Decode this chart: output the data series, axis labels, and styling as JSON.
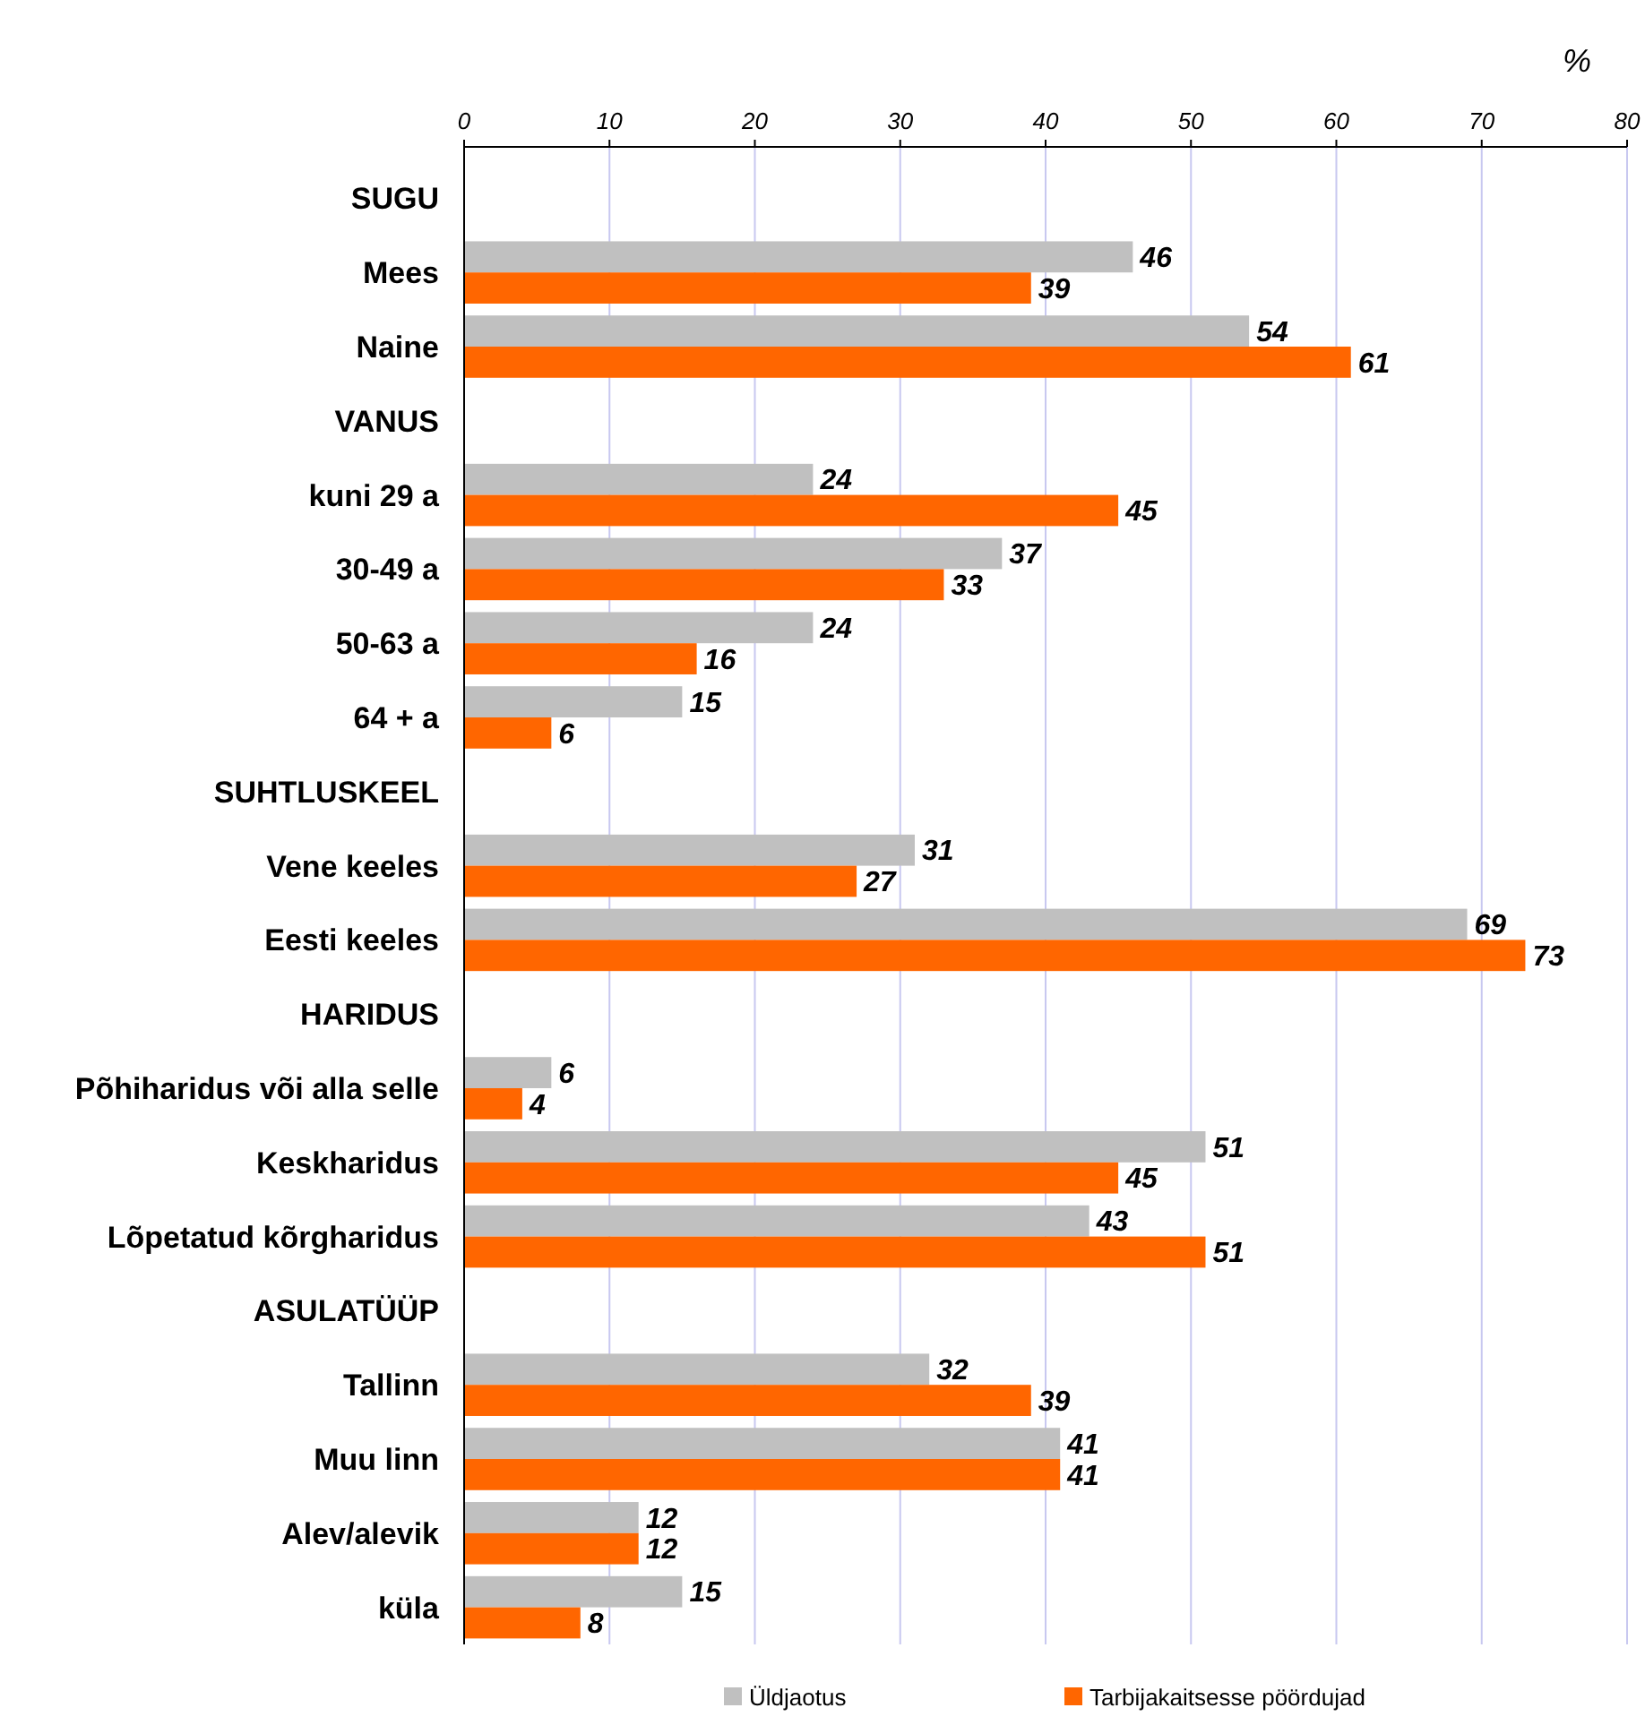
{
  "chart_data": {
    "type": "bar",
    "orientation": "horizontal",
    "xlabel": "%",
    "categories": [
      "SUGU",
      "Mees",
      "Naine",
      "VANUS",
      "kuni 29 a",
      "30-49 a",
      "50-63 a",
      "64 + a",
      "SUHTLUSKEEL",
      "Vene keeles",
      "Eesti keeles",
      "HARIDUS",
      "Põhiharidus või alla selle",
      "Keskharidus",
      "Lõpetatud kõrgharidus",
      "ASULATÜÜP",
      "Tallinn",
      "Muu linn",
      "Alev/alevik",
      "küla"
    ],
    "series": [
      {
        "name": "Üldjaotus",
        "color": "#c0c0c0",
        "values": [
          null,
          46,
          54,
          null,
          24,
          37,
          24,
          15,
          null,
          31,
          69,
          null,
          6,
          51,
          43,
          null,
          32,
          41,
          12,
          15
        ]
      },
      {
        "name": "Tarbijakaitsesse pöördujad",
        "color": "#ff6600",
        "values": [
          null,
          39,
          61,
          null,
          45,
          33,
          16,
          6,
          null,
          27,
          73,
          null,
          4,
          45,
          51,
          null,
          39,
          41,
          12,
          8
        ]
      }
    ],
    "xlim": [
      0,
      80
    ],
    "xticks": [
      0,
      10,
      20,
      30,
      40,
      50,
      60,
      70,
      80
    ],
    "grid": "x",
    "data_labels": true,
    "legend": "bottom"
  }
}
